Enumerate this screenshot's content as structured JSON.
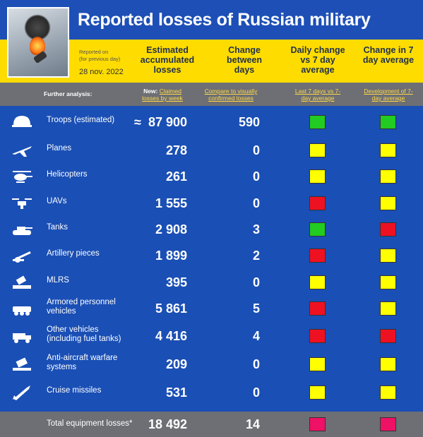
{
  "title": "Reported losses of Russian military",
  "reported_on": "Reported on",
  "for_previous_day": "(for previous day)",
  "date": "28 nov. 2022",
  "columns": {
    "accumulated": "Estimated accumulated losses",
    "change": "Change between days",
    "daily": "Daily change vs 7 day average",
    "seven": "Change in 7 day average"
  },
  "subheader": {
    "further_analysis": "Further analysis:",
    "new_prefix": "New:",
    "claimed_by_week": "Claimed losses by week",
    "compare": "Compare to visually confirmed losses",
    "last7": "Last 7 days vs 7-day average",
    "development": "Development of 7-day average"
  },
  "rows": [
    {
      "label": "Troops (estimated)",
      "prefix": "≈",
      "total": "87 900",
      "change": "590",
      "daily_color": "#22cc22",
      "seven_color": "#22cc22",
      "icon": "helmet-icon"
    },
    {
      "label": "Planes",
      "prefix": "",
      "total": "278",
      "change": "0",
      "daily_color": "#ffff00",
      "seven_color": "#ffff00",
      "icon": "plane-icon"
    },
    {
      "label": "Helicopters",
      "prefix": "",
      "total": "261",
      "change": "0",
      "daily_color": "#ffff00",
      "seven_color": "#ffff00",
      "icon": "helicopter-icon"
    },
    {
      "label": "UAVs",
      "prefix": "",
      "total": "1 555",
      "change": "0",
      "daily_color": "#ee1122",
      "seven_color": "#ffff00",
      "icon": "drone-icon"
    },
    {
      "label": "Tanks",
      "prefix": "",
      "total": "2 908",
      "change": "3",
      "daily_color": "#22cc22",
      "seven_color": "#ee1122",
      "icon": "tank-icon"
    },
    {
      "label": "Artillery pieces",
      "prefix": "",
      "total": "1 899",
      "change": "2",
      "daily_color": "#ee1122",
      "seven_color": "#ffff00",
      "icon": "artillery-icon"
    },
    {
      "label": "MLRS",
      "prefix": "",
      "total": "395",
      "change": "0",
      "daily_color": "#ffff00",
      "seven_color": "#ffff00",
      "icon": "mlrs-icon"
    },
    {
      "label": "Armored personnel vehicles",
      "prefix": "",
      "total": "5 861",
      "change": "5",
      "daily_color": "#ee1122",
      "seven_color": "#ffff00",
      "icon": "apc-icon"
    },
    {
      "label": "Other vehicles (including fuel tanks)",
      "prefix": "",
      "total": "4 416",
      "change": "4",
      "daily_color": "#ee1122",
      "seven_color": "#ee1122",
      "icon": "vehicle-icon"
    },
    {
      "label": "Anti-aircraft warfare systems",
      "prefix": "",
      "total": "209",
      "change": "0",
      "daily_color": "#ffff00",
      "seven_color": "#ffff00",
      "icon": "anti-aircraft-icon"
    },
    {
      "label": "Cruise missiles",
      "prefix": "",
      "total": "531",
      "change": "0",
      "daily_color": "#ffff00",
      "seven_color": "#ffff00",
      "icon": "missile-icon"
    }
  ],
  "footer": {
    "label": "Total equipment losses*",
    "total": "18 492",
    "change": "14",
    "daily_color": "#ee1166",
    "seven_color": "#ee1166"
  }
}
